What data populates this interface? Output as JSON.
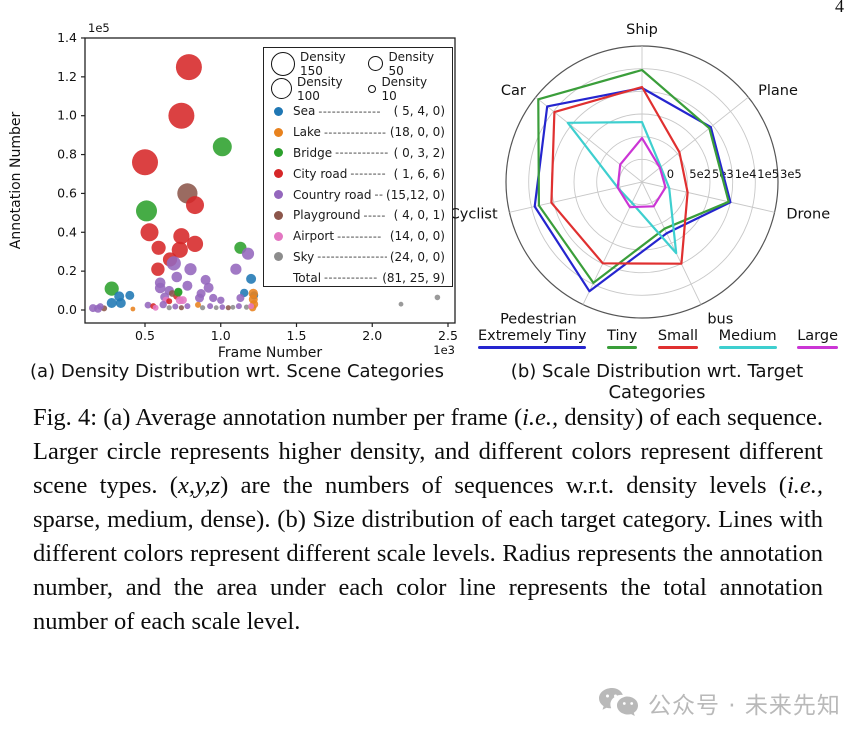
{
  "page": {
    "number": "4"
  },
  "figure_caption": "Fig. 4: (a) Average annotation number per frame (*i.e.,* density) of each sequence. Larger circle represents higher density, and different colors represent different scene types. (*x,y,z*) are the numbers of sequences w.r.t. density levels (*i.e.,* sparse, medium, dense). (b) Size distribution of each target category. Lines with different colors represent different scale levels. Radius represents the annotation number, and the area under each color line represents the total annotation number of each scale level.",
  "watermark": {
    "icon": "wechat-icon",
    "text": "公众号 · 未来先知"
  },
  "chart_data": [
    {
      "type": "scatter",
      "title": "(a) Density Distribution wrt. Scene Categories",
      "xlabel": "Frame Number",
      "ylabel": "Annotation Number",
      "x_offset_label": "1e3",
      "y_offset_label": "1e5",
      "x_ticks": [
        "0.5",
        "1.0",
        "1.5",
        "2.0",
        "2.5"
      ],
      "y_ticks": [
        "0.0",
        "0.2",
        "0.4",
        "0.6",
        "0.8",
        "1.0",
        "1.2",
        "1.4"
      ],
      "xlim_1e3": [
        0.1,
        2.55
      ],
      "ylim_1e5": [
        0,
        1.4
      ],
      "grid": false,
      "size_legend": [
        {
          "label": "Density 150",
          "diameter": 22
        },
        {
          "label": "Density 50",
          "diameter": 13
        },
        {
          "label": "Density 100",
          "diameter": 19
        },
        {
          "label": "Density 10",
          "diameter": 6
        }
      ],
      "categories": [
        {
          "key": "sea",
          "label": "Sea",
          "color": "#1f77b4",
          "dashes": "--------------",
          "counts": "( 5, 4, 0)"
        },
        {
          "key": "lake",
          "label": "Lake",
          "color": "#e8821e",
          "dashes": "--------------",
          "counts": "(18, 0, 0)"
        },
        {
          "key": "bridge",
          "label": "Bridge",
          "color": "#2ca02c",
          "dashes": "------------",
          "counts": "( 0, 3, 2)"
        },
        {
          "key": "city_road",
          "label": "City road",
          "color": "#d62728",
          "dashes": "--------",
          "counts": "( 1, 6, 6)"
        },
        {
          "key": "country_road",
          "label": "Country road",
          "color": "#9467bd",
          "dashes": "--",
          "counts": "(15,12, 0)"
        },
        {
          "key": "playground",
          "label": "Playground",
          "color": "#8c564b",
          "dashes": "-----",
          "counts": "( 4, 0, 1)"
        },
        {
          "key": "airport",
          "label": "Airport",
          "color": "#e377c2",
          "dashes": "----------",
          "counts": "(14, 0, 0)"
        },
        {
          "key": "sky",
          "label": "Sky",
          "color": "#8c8c8c",
          "dashes": "----------------",
          "counts": "(24, 0, 0)"
        }
      ],
      "total": {
        "label": "Total",
        "dashes": "------------",
        "counts": "(81, 25, 9)"
      },
      "points_format": [
        "category",
        "frame_x1e3",
        "annotations_x1e5",
        "density"
      ],
      "points": [
        [
          "city_road",
          0.79,
          1.25,
          150
        ],
        [
          "city_road",
          0.74,
          1.0,
          150
        ],
        [
          "city_road",
          0.5,
          0.76,
          150
        ],
        [
          "bridge",
          1.01,
          0.84,
          80
        ],
        [
          "playground",
          0.78,
          0.6,
          90
        ],
        [
          "city_road",
          0.83,
          0.54,
          72
        ],
        [
          "bridge",
          0.51,
          0.51,
          98
        ],
        [
          "city_road",
          0.53,
          0.4,
          72
        ],
        [
          "city_road",
          0.74,
          0.38,
          58
        ],
        [
          "city_road",
          0.83,
          0.34,
          58
        ],
        [
          "city_road",
          0.73,
          0.31,
          58
        ],
        [
          "city_road",
          0.59,
          0.32,
          45
        ],
        [
          "city_road",
          0.665,
          0.26,
          45
        ],
        [
          "country_road",
          0.69,
          0.24,
          45
        ],
        [
          "city_road",
          0.585,
          0.21,
          40
        ],
        [
          "country_road",
          0.8,
          0.21,
          33
        ],
        [
          "bridge",
          1.13,
          0.32,
          33
        ],
        [
          "country_road",
          1.18,
          0.29,
          33
        ],
        [
          "country_road",
          1.1,
          0.21,
          28
        ],
        [
          "country_road",
          0.9,
          0.155,
          22
        ],
        [
          "country_road",
          0.71,
          0.17,
          25
        ],
        [
          "country_road",
          0.78,
          0.125,
          22
        ],
        [
          "bridge",
          0.28,
          0.11,
          45
        ],
        [
          "sea",
          1.2,
          0.16,
          22
        ],
        [
          "country_road",
          0.92,
          0.115,
          22
        ],
        [
          "country_road",
          0.6,
          0.14,
          25
        ],
        [
          "country_road",
          0.66,
          0.1,
          20
        ],
        [
          "sea",
          1.22,
          0.075,
          15
        ],
        [
          "country_road",
          0.87,
          0.085,
          18
        ],
        [
          "country_road",
          0.6,
          0.113,
          25
        ],
        [
          "country_road",
          0.63,
          0.067,
          18
        ],
        [
          "bridge",
          0.72,
          0.093,
          16
        ],
        [
          "city_road",
          0.71,
          0.072,
          12
        ],
        [
          "airport",
          0.75,
          0.051,
          14
        ],
        [
          "country_road",
          0.86,
          0.062,
          18
        ],
        [
          "sea",
          1.155,
          0.088,
          16
        ],
        [
          "country_road",
          1.13,
          0.062,
          14
        ],
        [
          "country_road",
          0.95,
          0.062,
          15
        ],
        [
          "country_road",
          1.0,
          0.05,
          12
        ],
        [
          "airport",
          0.64,
          0.05,
          12
        ],
        [
          "playground",
          0.68,
          0.085,
          10
        ],
        [
          "city_road",
          0.66,
          0.045,
          8
        ],
        [
          "sea",
          0.28,
          0.036,
          22
        ],
        [
          "sea",
          0.34,
          0.036,
          22
        ],
        [
          "lake",
          1.215,
          0.085,
          20
        ],
        [
          "lake",
          1.215,
          0.055,
          18
        ],
        [
          "lake",
          1.22,
          0.03,
          15
        ],
        [
          "lake",
          1.21,
          0.012,
          12
        ],
        [
          "sky",
          2.19,
          0.03,
          5
        ],
        [
          "sky",
          2.43,
          0.065,
          7
        ],
        [
          "country_road",
          0.157,
          0.01,
          14
        ],
        [
          "country_road",
          0.19,
          0.006,
          14
        ],
        [
          "playground",
          0.23,
          0.008,
          8
        ],
        [
          "country_road",
          0.205,
          0.018,
          10
        ],
        [
          "lake",
          0.42,
          0.005,
          5
        ],
        [
          "country_road",
          0.52,
          0.025,
          10
        ],
        [
          "city_road",
          0.555,
          0.02,
          8
        ],
        [
          "airport",
          0.57,
          0.012,
          8
        ],
        [
          "country_road",
          0.62,
          0.028,
          12
        ],
        [
          "sky",
          0.66,
          0.012,
          6
        ],
        [
          "country_road",
          0.7,
          0.018,
          8
        ],
        [
          "playground",
          0.74,
          0.012,
          6
        ],
        [
          "country_road",
          0.78,
          0.02,
          8
        ],
        [
          "lake",
          0.85,
          0.026,
          8
        ],
        [
          "sky",
          0.88,
          0.012,
          6
        ],
        [
          "country_road",
          0.93,
          0.02,
          8
        ],
        [
          "sky",
          0.97,
          0.012,
          5
        ],
        [
          "country_road",
          1.01,
          0.015,
          7
        ],
        [
          "playground",
          1.05,
          0.012,
          6
        ],
        [
          "sky",
          1.08,
          0.014,
          5
        ],
        [
          "country_road",
          1.12,
          0.02,
          8
        ],
        [
          "sky",
          1.17,
          0.015,
          6
        ],
        [
          "airport",
          1.2,
          0.02,
          8
        ],
        [
          "airport",
          0.73,
          0.05,
          14
        ],
        [
          "bridge",
          0.72,
          0.09,
          14
        ],
        [
          "sea",
          0.33,
          0.07,
          22
        ],
        [
          "sea",
          0.4,
          0.075,
          18
        ]
      ]
    },
    {
      "type": "radar",
      "title": "(b) Scale Distribution  wrt. Target Categories",
      "axes": [
        "Ship",
        "Plane",
        "Drone",
        "bus",
        "Pedestrian",
        "Cyclist",
        "Car"
      ],
      "radial_ticks": [
        "0",
        "5e2",
        "5e3",
        "1e4",
        "1e5",
        "3e5"
      ],
      "radial_tick_values": [
        0,
        500,
        5000,
        10000,
        100000,
        300000
      ],
      "legend_position": "bottom",
      "series": [
        {
          "name": "Extremely Tiny",
          "color": "#2525cf",
          "values": [
            23000,
            9400,
            10000,
            2800,
            170000,
            87000,
            170000
          ]
        },
        {
          "name": "Tiny",
          "color": "#3a9e3a",
          "values": [
            95000,
            9000,
            9600,
            1800,
            95000,
            70000,
            270000
          ]
        },
        {
          "name": "Small",
          "color": "#e03030",
          "values": [
            27000,
            1000,
            800,
            10000,
            9900,
            19000,
            95000
          ]
        },
        {
          "name": "Medium",
          "color": "#3ecfcf",
          "values": [
            3400,
            30,
            115,
            7400,
            10,
            50,
            27000
          ]
        },
        {
          "name": "Large",
          "color": "#cb35d5",
          "values": [
            470,
            5,
            30,
            95,
            115,
            50,
            115
          ]
        }
      ]
    }
  ]
}
